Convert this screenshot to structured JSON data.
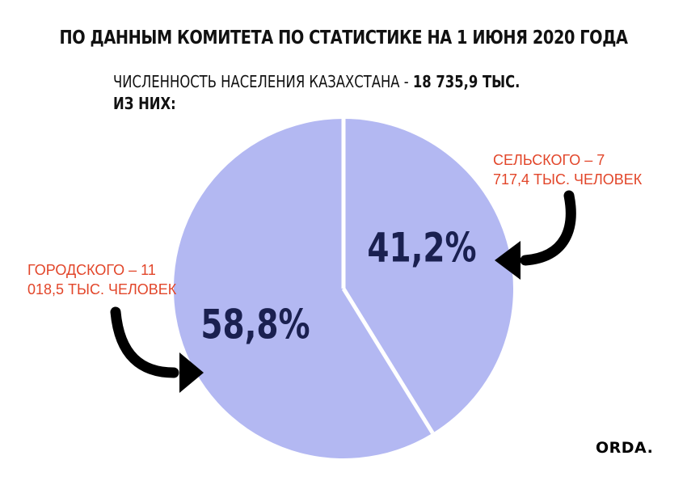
{
  "header": {
    "title": "ПО ДАННЫМ КОМИТЕТА ПО СТАТИСТИКЕ НА 1 ИЮНЯ 2020 ГОДА",
    "subtitle_prefix": "ЧИСЛЕННОСТЬ НАСЕЛЕНИЯ КАЗАХСТАНА - ",
    "subtitle_value": "18 735,9 ТЫС.",
    "subtitle_line2": "ИЗ НИХ:"
  },
  "annotations": {
    "rural_line1": "СЕЛЬСКОГО – 7",
    "rural_line2": "717,4 ТЫС. ЧЕЛОВЕК",
    "urban_line1": "ГОРОДСКОГО – 11",
    "urban_line2": "018,5 ТЫС. ЧЕЛОВЕК"
  },
  "chart_data": {
    "type": "pie",
    "slices": [
      {
        "label": "41,2%",
        "value": 41.2,
        "color": "#b3b8f2"
      },
      {
        "label": "58,8%",
        "value": 58.8,
        "color": "#b3b8f2"
      }
    ],
    "label_color": "#1a2050",
    "separator_color": "#ffffff"
  },
  "brand": {
    "logo": "ORDA."
  },
  "colors": {
    "accent": "#e2462a",
    "text": "#111111"
  }
}
